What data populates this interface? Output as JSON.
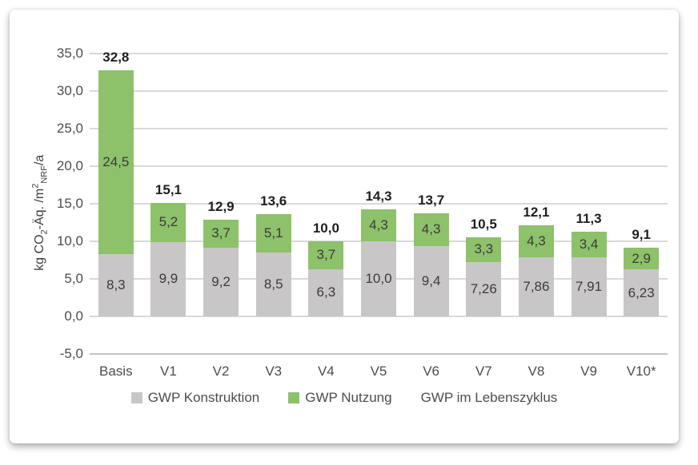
{
  "chart_data": {
    "type": "bar",
    "stacked": true,
    "title": "",
    "categories": [
      "Basis",
      "V1",
      "V2",
      "V3",
      "V4",
      "V5",
      "V6",
      "V7",
      "V8",
      "V9",
      "V10*"
    ],
    "series": [
      {
        "name": "GWP Konstruktion",
        "color": "#c8c6c6",
        "values": [
          8.3,
          9.9,
          9.2,
          8.5,
          6.3,
          10.0,
          9.4,
          7.26,
          7.86,
          7.91,
          6.23
        ],
        "labels": [
          "8,3",
          "9,9",
          "9,2",
          "8,5",
          "6,3",
          "10,0",
          "9,4",
          "7,26",
          "7,86",
          "7,91",
          "6,23"
        ]
      },
      {
        "name": "GWP Nutzung",
        "color": "#8dc16a",
        "values": [
          24.5,
          5.2,
          3.7,
          5.1,
          3.7,
          4.3,
          4.3,
          3.3,
          4.3,
          3.4,
          2.9
        ],
        "labels": [
          "24,5",
          "5,2",
          "3,7",
          "5,1",
          "3,7",
          "4,3",
          "4,3",
          "3,3",
          "4,3",
          "3,4",
          "2,9"
        ]
      }
    ],
    "totals": {
      "name": "GWP im Lebenszyklus",
      "values": [
        32.8,
        15.1,
        12.9,
        13.6,
        10.0,
        14.3,
        13.7,
        10.5,
        12.1,
        11.3,
        9.1
      ],
      "labels": [
        "32,8",
        "15,1",
        "12,9",
        "13,6",
        "10,0",
        "14,3",
        "13,7",
        "10,5",
        "12,1",
        "11,3",
        "9,1"
      ]
    },
    "ylabel_parts": [
      {
        "text": "kg CO"
      },
      {
        "text": "2",
        "style": "sub"
      },
      {
        "text": "-Äq. /m"
      },
      {
        "text": "2",
        "style": "sup"
      },
      {
        "text": "NRF",
        "style": "sub"
      },
      {
        "text": "/a"
      }
    ],
    "y_ticks": [
      "35,0",
      "30,0",
      "25,0",
      "20,0",
      "15,0",
      "10,0",
      "5,0",
      "0,0",
      "-5,0"
    ],
    "ylim": [
      -5,
      35
    ],
    "grid": true,
    "legend_position": "bottom",
    "colors": {
      "gridline": "#d9d9d9",
      "axisline": "#c3c3c3",
      "konstruktion": "#c8c6c6",
      "nutzung": "#8dc16a"
    }
  },
  "legend": {
    "items": [
      {
        "label": "GWP Konstruktion",
        "color": "#c8c6c6",
        "marker": true
      },
      {
        "label": "GWP Nutzung",
        "color": "#8dc16a",
        "marker": true
      },
      {
        "label": "GWP im Lebenszyklus",
        "color": "",
        "marker": false
      }
    ]
  }
}
